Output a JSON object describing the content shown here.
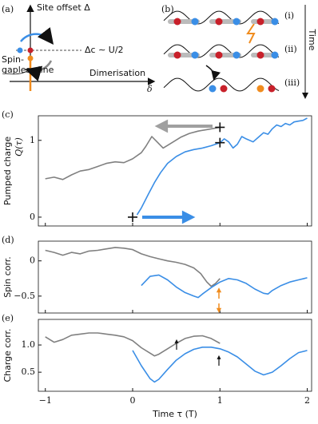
{
  "diagrams": {
    "a": {
      "panel": "(a)",
      "y_axis": "Site offset Δ",
      "critical": "Δc ∼ U/2",
      "gapless": [
        "Spin-",
        "gapless line"
      ],
      "x_axis": "Dimerisation",
      "x_symbol": "δ"
    },
    "b": {
      "panel": "(b)",
      "rows": [
        "(i)",
        "(ii)",
        "(iii)"
      ],
      "time": "Time"
    }
  },
  "chart_data": [
    {
      "type": "line",
      "panel": "(c)",
      "ylabel": "Pumped charge",
      "ylabel_symbol": "Q(τ)",
      "xlim": [
        -1.08,
        2.05
      ],
      "xticks": [
        -1,
        0,
        1,
        2
      ],
      "ylim": [
        -0.115,
        1.32
      ],
      "yticks": [
        0,
        1
      ],
      "series": [
        {
          "color": "#808080",
          "x": [
            -1,
            -0.9,
            -0.8,
            -0.7,
            -0.6,
            -0.5,
            -0.4,
            -0.3,
            -0.2,
            -0.1,
            0,
            0.1,
            0.15,
            0.22,
            0.28,
            0.35,
            0.45,
            0.55,
            0.65,
            0.75,
            0.85,
            0.95,
            1.0
          ],
          "values": [
            0.5,
            0.52,
            0.49,
            0.55,
            0.6,
            0.62,
            0.66,
            0.7,
            0.72,
            0.71,
            0.76,
            0.84,
            0.92,
            1.05,
            0.98,
            0.9,
            0.97,
            1.04,
            1.09,
            1.12,
            1.14,
            1.16,
            1.17
          ]
        },
        {
          "color": "#3a8ee6",
          "x": [
            0.05,
            0.1,
            0.18,
            0.25,
            0.32,
            0.4,
            0.5,
            0.6,
            0.7,
            0.8,
            0.9,
            1.0,
            1.05,
            1.1,
            1.15,
            1.2,
            1.25,
            1.3,
            1.38,
            1.45,
            1.5,
            1.55,
            1.6,
            1.65,
            1.7,
            1.75,
            1.8,
            1.85,
            1.9,
            1.95,
            2.0
          ],
          "values": [
            0.03,
            0.12,
            0.3,
            0.45,
            0.58,
            0.7,
            0.79,
            0.85,
            0.88,
            0.9,
            0.93,
            0.97,
            1.02,
            0.98,
            0.9,
            0.95,
            1.05,
            1.02,
            0.98,
            1.05,
            1.1,
            1.08,
            1.15,
            1.2,
            1.18,
            1.22,
            1.2,
            1.24,
            1.25,
            1.26,
            1.29
          ]
        }
      ],
      "markers": {
        "x": [
          0,
          1,
          1
        ],
        "values": [
          0,
          0.97,
          1.17
        ]
      }
    },
    {
      "type": "line",
      "panel": "(d)",
      "ylabel": "Spin corr.",
      "xlim": [
        -1.08,
        2.05
      ],
      "xticks": [
        -1,
        0,
        1,
        2
      ],
      "ylim": [
        -0.74,
        0.28
      ],
      "yticks": [
        {
          "value": -0.5,
          "label": "−0.5"
        },
        0
      ],
      "series": [
        {
          "color": "#808080",
          "x": [
            -1,
            -0.9,
            -0.8,
            -0.7,
            -0.6,
            -0.5,
            -0.4,
            -0.3,
            -0.2,
            -0.1,
            0,
            0.1,
            0.2,
            0.3,
            0.4,
            0.5,
            0.6,
            0.7,
            0.78,
            0.85,
            0.9,
            0.95,
            1.0
          ],
          "values": [
            0.15,
            0.12,
            0.08,
            0.12,
            0.1,
            0.14,
            0.15,
            0.17,
            0.19,
            0.18,
            0.16,
            0.1,
            0.06,
            0.03,
            0.0,
            -0.02,
            -0.05,
            -0.1,
            -0.18,
            -0.3,
            -0.36,
            -0.32,
            -0.25
          ]
        },
        {
          "color": "#3a8ee6",
          "x": [
            0.1,
            0.2,
            0.3,
            0.4,
            0.5,
            0.6,
            0.7,
            0.75,
            0.8,
            0.9,
            1.0,
            1.1,
            1.2,
            1.3,
            1.4,
            1.5,
            1.55,
            1.6,
            1.7,
            1.8,
            1.9,
            2.0
          ],
          "values": [
            -0.35,
            -0.22,
            -0.2,
            -0.27,
            -0.37,
            -0.45,
            -0.5,
            -0.52,
            -0.47,
            -0.38,
            -0.3,
            -0.25,
            -0.27,
            -0.32,
            -0.4,
            -0.46,
            -0.47,
            -0.42,
            -0.35,
            -0.3,
            -0.27,
            -0.24
          ]
        }
      ]
    },
    {
      "type": "line",
      "panel": "(e)",
      "ylabel": "Charge corr.",
      "xlabel": "Time τ (T)",
      "xlim": [
        -1.08,
        2.05
      ],
      "xticks": [
        {
          "value": -1,
          "label": "−1"
        },
        0,
        1,
        2
      ],
      "ylim": [
        0.15,
        1.47
      ],
      "yticks": [
        0.5,
        {
          "value": 1,
          "label": "1.0"
        }
      ],
      "series": [
        {
          "color": "#808080",
          "x": [
            -1,
            -0.9,
            -0.8,
            -0.7,
            -0.6,
            -0.5,
            -0.4,
            -0.3,
            -0.2,
            -0.1,
            0,
            0.1,
            0.2,
            0.25,
            0.3,
            0.4,
            0.5,
            0.6,
            0.7,
            0.8,
            0.9,
            1.0
          ],
          "values": [
            1.15,
            1.05,
            1.1,
            1.18,
            1.2,
            1.22,
            1.22,
            1.2,
            1.18,
            1.15,
            1.08,
            0.95,
            0.85,
            0.8,
            0.83,
            0.93,
            1.03,
            1.12,
            1.16,
            1.17,
            1.12,
            1.03
          ]
        },
        {
          "color": "#3a8ee6",
          "x": [
            0,
            0.1,
            0.2,
            0.25,
            0.3,
            0.4,
            0.5,
            0.6,
            0.7,
            0.8,
            0.9,
            1.0,
            1.1,
            1.2,
            1.3,
            1.4,
            1.5,
            1.6,
            1.7,
            1.8,
            1.9,
            2.0
          ],
          "values": [
            0.9,
            0.62,
            0.38,
            0.32,
            0.37,
            0.55,
            0.72,
            0.84,
            0.92,
            0.96,
            0.96,
            0.93,
            0.87,
            0.78,
            0.65,
            0.52,
            0.45,
            0.5,
            0.62,
            0.75,
            0.86,
            0.9
          ]
        }
      ]
    }
  ]
}
